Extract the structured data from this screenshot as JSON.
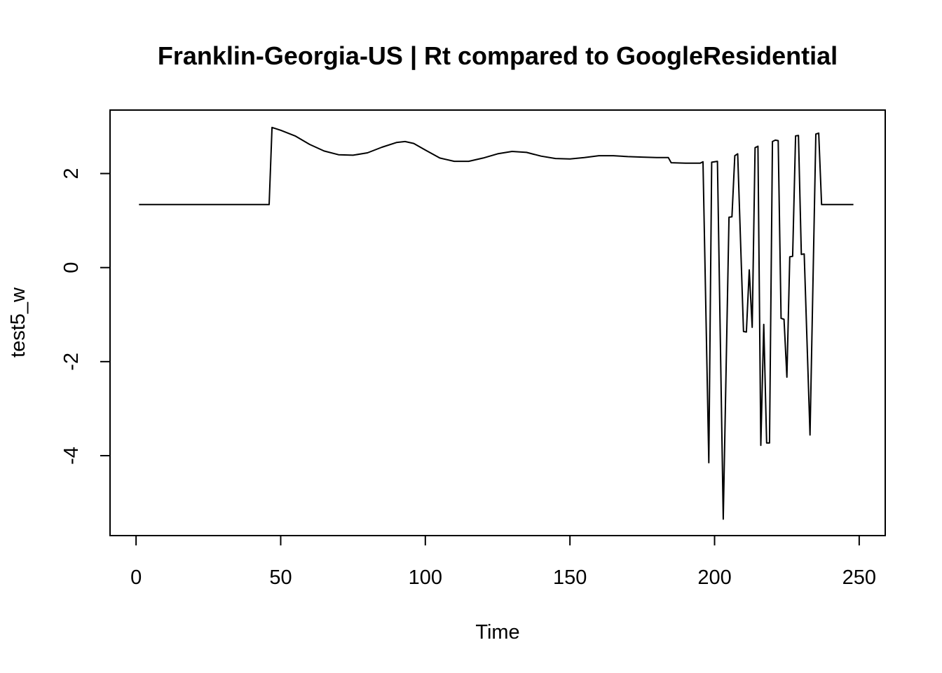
{
  "chart_data": {
    "type": "line",
    "title": "Franklin-Georgia-US | Rt compared to GoogleResidential",
    "xlabel": "Time",
    "ylabel": "test5_w",
    "xlim": [
      -9,
      259
    ],
    "ylim": [
      -5.7,
      3.35
    ],
    "xticks": [
      0,
      50,
      100,
      150,
      200,
      250
    ],
    "yticks": [
      -4,
      -2,
      0,
      2
    ],
    "xtick_labels": [
      "0",
      "50",
      "100",
      "150",
      "200",
      "250"
    ],
    "ytick_labels": [
      "-4",
      "-2",
      "0",
      "2"
    ],
    "grid": false,
    "series": [
      {
        "color": "#000000",
        "points": [
          [
            1,
            1.34
          ],
          [
            46,
            1.34
          ],
          [
            47,
            2.98
          ],
          [
            50,
            2.92
          ],
          [
            55,
            2.8
          ],
          [
            60,
            2.62
          ],
          [
            65,
            2.48
          ],
          [
            70,
            2.4
          ],
          [
            75,
            2.39
          ],
          [
            80,
            2.44
          ],
          [
            85,
            2.56
          ],
          [
            90,
            2.66
          ],
          [
            93,
            2.68
          ],
          [
            96,
            2.64
          ],
          [
            100,
            2.5
          ],
          [
            105,
            2.33
          ],
          [
            110,
            2.26
          ],
          [
            115,
            2.26
          ],
          [
            120,
            2.33
          ],
          [
            125,
            2.42
          ],
          [
            130,
            2.47
          ],
          [
            135,
            2.45
          ],
          [
            140,
            2.37
          ],
          [
            145,
            2.32
          ],
          [
            150,
            2.31
          ],
          [
            155,
            2.34
          ],
          [
            160,
            2.38
          ],
          [
            165,
            2.38
          ],
          [
            170,
            2.36
          ],
          [
            175,
            2.35
          ],
          [
            180,
            2.34
          ],
          [
            184,
            2.34
          ],
          [
            185,
            2.23
          ],
          [
            190,
            2.22
          ],
          [
            195,
            2.22
          ],
          [
            196,
            2.25
          ],
          [
            198,
            -4.15
          ],
          [
            199,
            2.24
          ],
          [
            201,
            2.26
          ],
          [
            203,
            -5.35
          ],
          [
            205,
            1.07
          ],
          [
            206,
            1.08
          ],
          [
            207,
            2.38
          ],
          [
            208,
            2.42
          ],
          [
            210,
            -1.36
          ],
          [
            211,
            -1.37
          ],
          [
            212,
            -0.05
          ],
          [
            213,
            -1.27
          ],
          [
            214,
            2.55
          ],
          [
            215,
            2.58
          ],
          [
            216,
            -3.78
          ],
          [
            217,
            -1.21
          ],
          [
            218,
            -3.73
          ],
          [
            219,
            -3.73
          ],
          [
            220,
            2.68
          ],
          [
            221,
            2.71
          ],
          [
            222,
            2.7
          ],
          [
            223,
            -1.08
          ],
          [
            224,
            -1.1
          ],
          [
            225,
            -2.33
          ],
          [
            226,
            0.23
          ],
          [
            227,
            0.24
          ],
          [
            228,
            2.8
          ],
          [
            229,
            2.81
          ],
          [
            230,
            0.28
          ],
          [
            231,
            0.29
          ],
          [
            233,
            -3.56
          ],
          [
            235,
            2.84
          ],
          [
            236,
            2.86
          ],
          [
            237,
            1.34
          ],
          [
            248,
            1.34
          ]
        ]
      }
    ]
  }
}
